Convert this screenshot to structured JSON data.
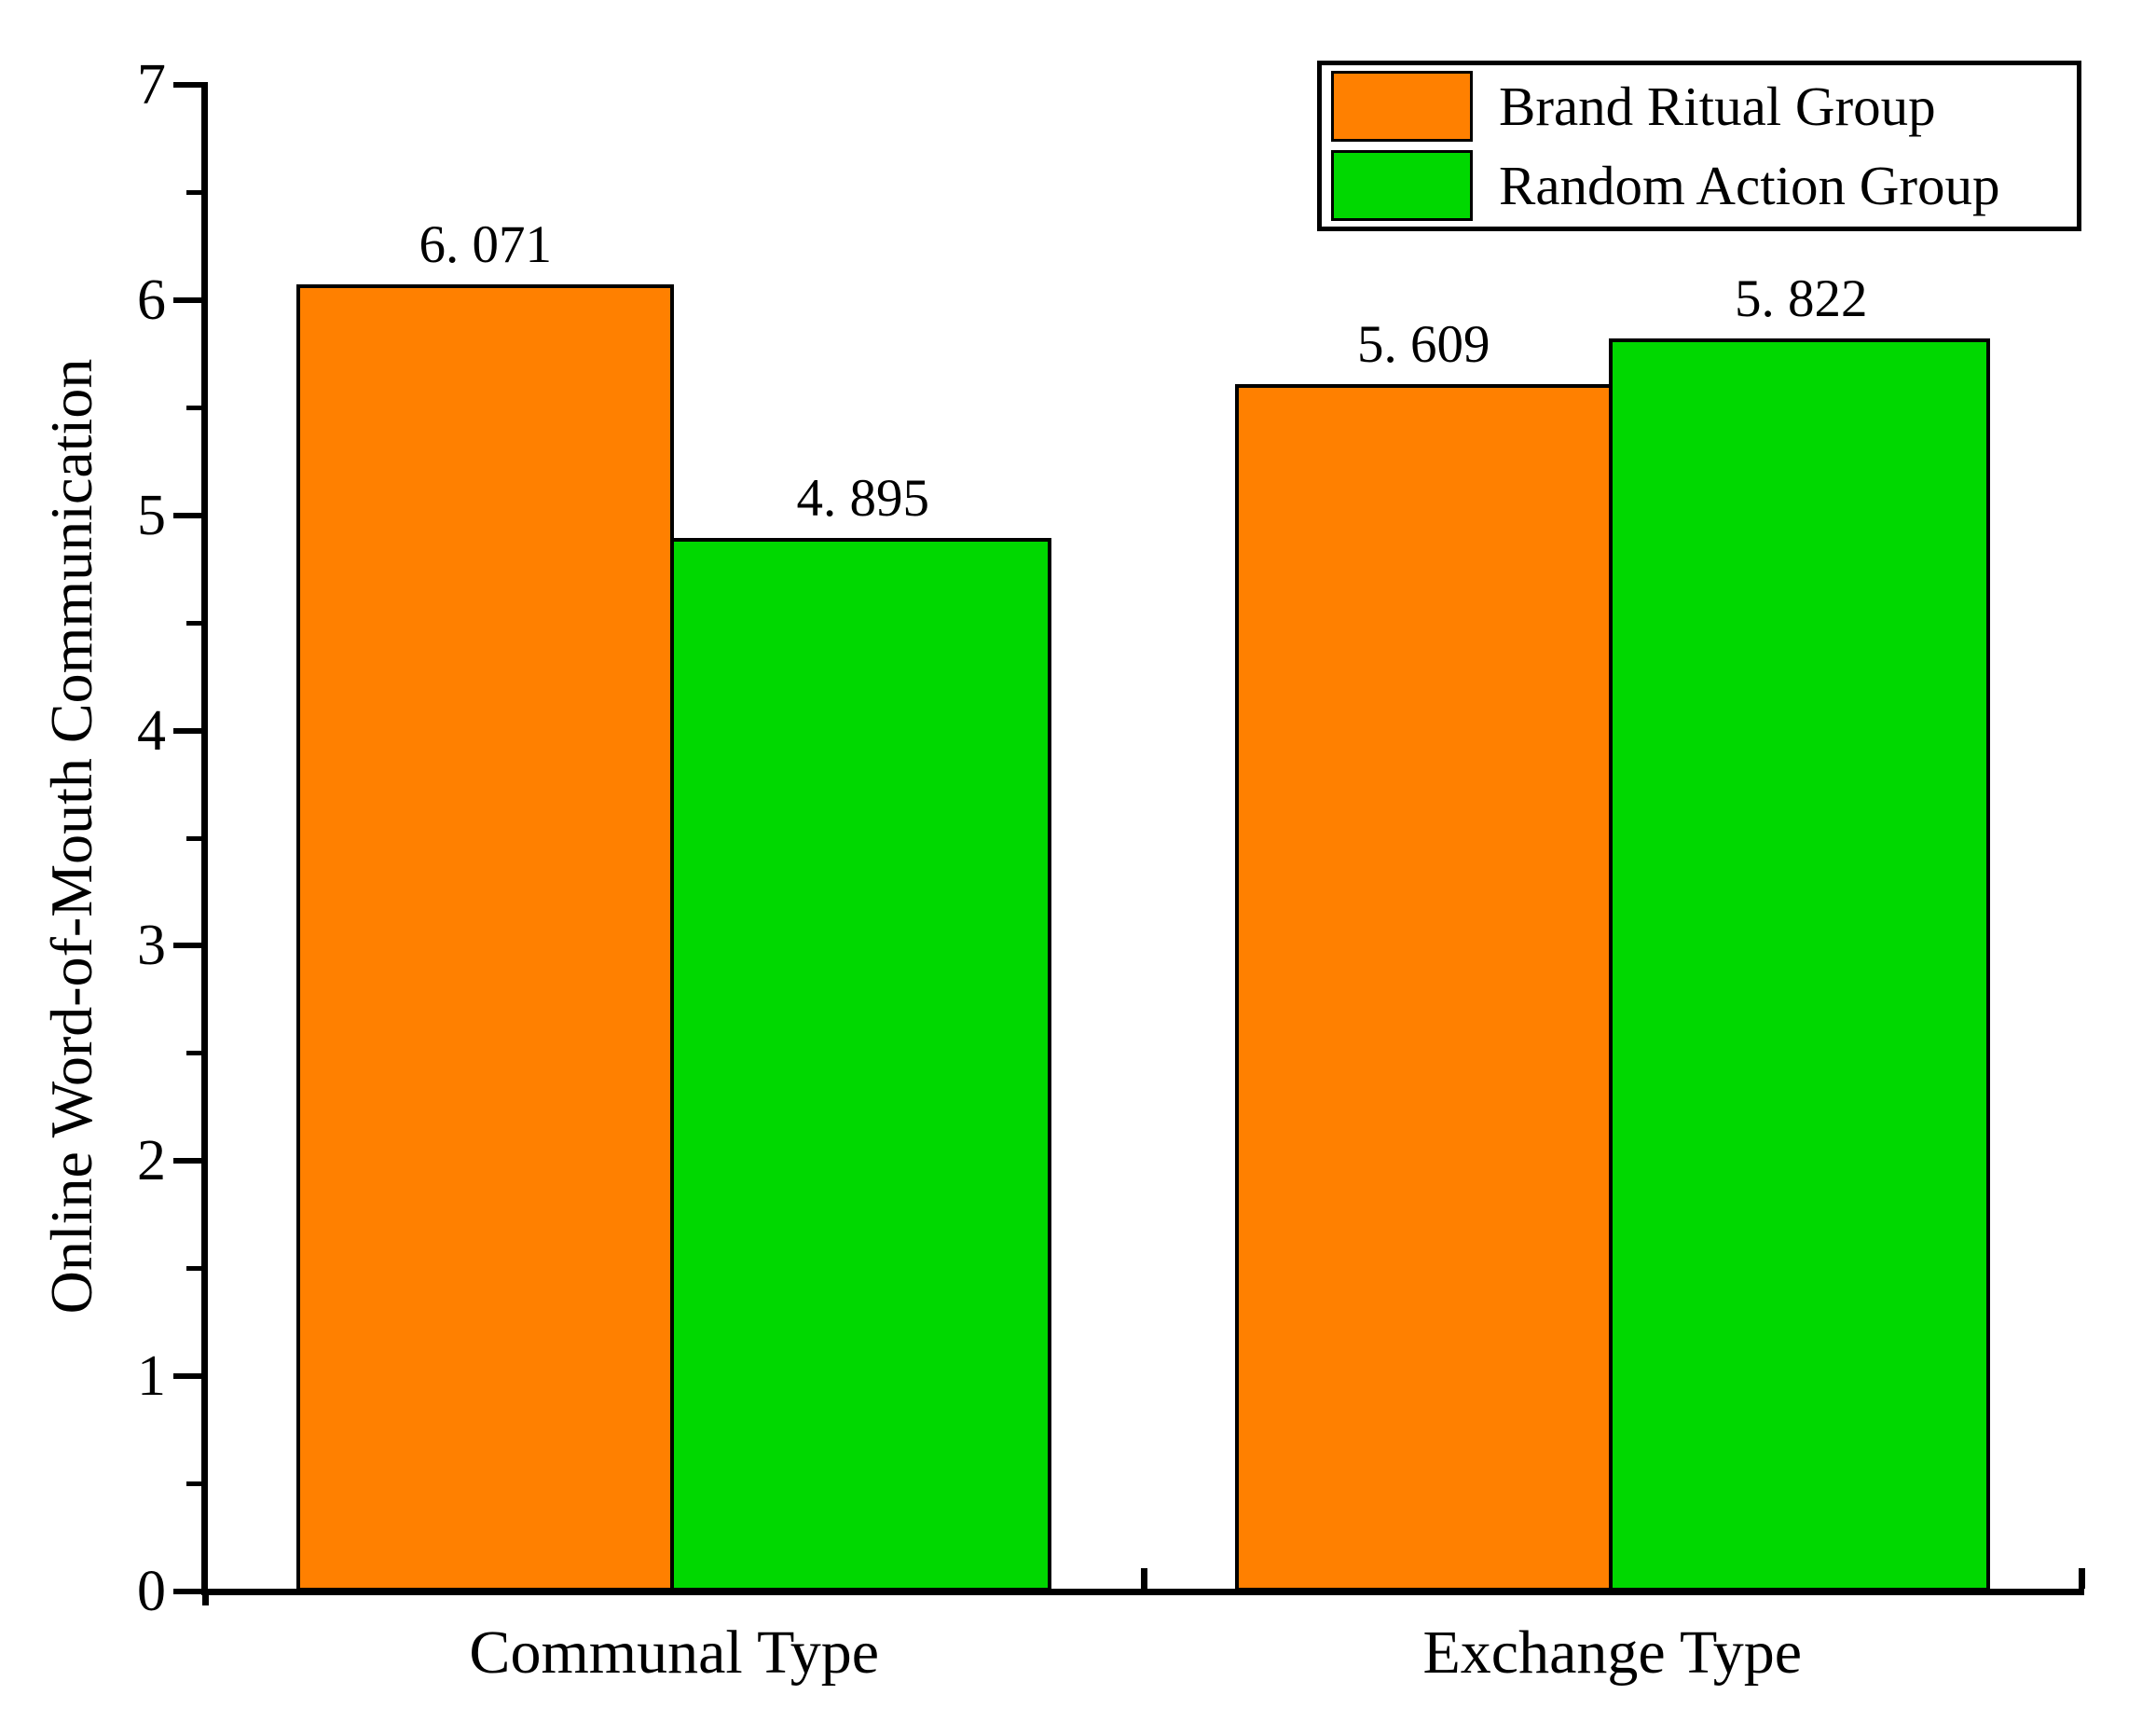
{
  "chart_data": {
    "type": "bar",
    "title": "",
    "xlabel": "",
    "ylabel": "Online Word-of-Mouth Communication",
    "categories": [
      "Communal Type",
      "Exchange Type"
    ],
    "series": [
      {
        "name": "Brand Ritual Group",
        "color": "#FF8000",
        "values": [
          6.071,
          5.609
        ],
        "value_labels": [
          "6. 071",
          "5. 609"
        ]
      },
      {
        "name": "Random Action Group",
        "color": "#00D800",
        "values": [
          4.895,
          5.822
        ],
        "value_labels": [
          "4. 895",
          "5. 822"
        ]
      }
    ],
    "ylim": [
      0,
      7
    ],
    "ymajor_ticks": [
      0,
      1,
      2,
      3,
      4,
      5,
      6,
      7
    ],
    "yminor_step": 0.5,
    "grid": false,
    "bar_edge_color": "#000000",
    "axis_color": "#000000",
    "legend_position": "top-right"
  }
}
